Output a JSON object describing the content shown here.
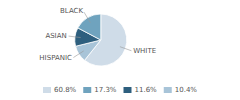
{
  "chart_data": {
    "type": "pie",
    "categories": [
      "WHITE",
      "HISPANIC",
      "ASIAN",
      "BLACK"
    ],
    "values": [
      60.8,
      10.4,
      11.6,
      17.3
    ],
    "value_labels": [
      "60.8%",
      "10.4%",
      "11.6%",
      "17.3%"
    ],
    "colors": [
      "#cfdce8",
      "#a8c4d8",
      "#2e5f7e",
      "#6fa3be"
    ],
    "legend": "bottom"
  }
}
